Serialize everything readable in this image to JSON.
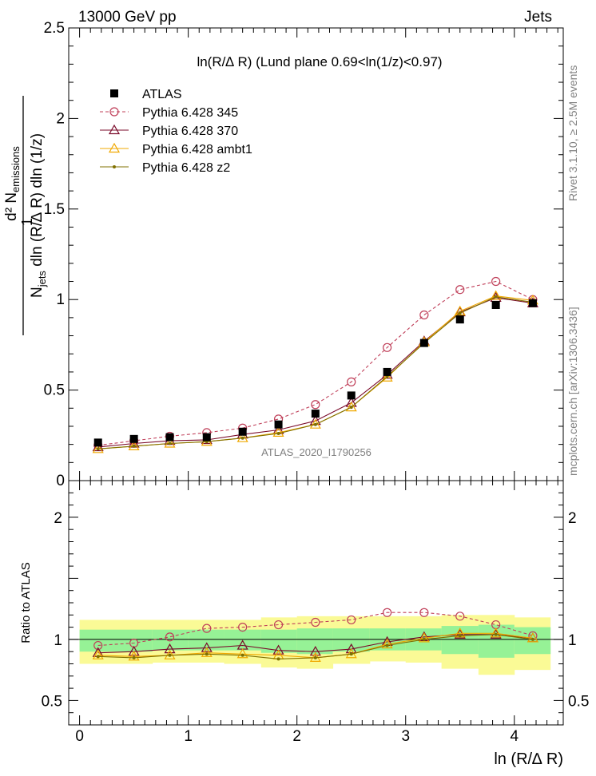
{
  "header": {
    "left": "13000 GeV pp",
    "right": "Jets"
  },
  "side_labels": {
    "rivet": "Rivet 3.1.10, ≥ 2.5M events",
    "mcplots": "mcplots.cern.ch [arXiv:1306.3436]"
  },
  "watermark": "ATLAS_2020_I1790256",
  "y_axis_label": {
    "numerator": "d² N",
    "numerator_sub": "emissions",
    "denominator_1": "N",
    "denominator_sub": "jets",
    "denominator_2": " dln (R/∆ R) dln (1/z)",
    "one": "1"
  },
  "ratio_ylabel": "Ratio to ATLAS",
  "colors": {
    "atlas": "#000000",
    "p345": "#c0405a",
    "p370": "#7a0a2a",
    "ambt1": "#f0a800",
    "z2": "#807000",
    "band_inner": "#96f296",
    "band_outer": "#fafa96"
  },
  "chart_data": [
    {
      "type": "line",
      "title": "ln(R/∆ R) (Lund plane 0.69<ln(1/z)<0.97)",
      "xlabel": "ln (R/∆ R)",
      "ylabel": "d²N_emissions / (N_jets dln(R/∆R) dln(1/z))",
      "xlim": [
        -0.1,
        4.45
      ],
      "ylim": [
        0,
        2.5
      ],
      "x_ticks": [
        "0",
        "1",
        "2",
        "3",
        "4"
      ],
      "y_ticks": [
        "0",
        "0.5",
        "1",
        "1.5",
        "2",
        "2.5"
      ],
      "legend_position": "top-left",
      "x": [
        0.17,
        0.5,
        0.83,
        1.17,
        1.5,
        1.83,
        2.17,
        2.5,
        2.83,
        3.17,
        3.5,
        3.83,
        4.17
      ],
      "series": [
        {
          "name": "ATLAS",
          "marker": "square",
          "color": "#000000",
          "values": [
            0.21,
            0.23,
            0.24,
            0.24,
            0.27,
            0.31,
            0.37,
            0.47,
            0.6,
            0.76,
            0.89,
            0.97,
            0.98
          ]
        },
        {
          "name": "Pythia 6.428 345",
          "marker": "open-circle",
          "color": "#c0405a",
          "dashed": true,
          "values": [
            0.195,
            0.22,
            0.245,
            0.265,
            0.29,
            0.34,
            0.42,
            0.545,
            0.735,
            0.915,
            1.055,
            1.1,
            1.0
          ]
        },
        {
          "name": "Pythia 6.428 370",
          "marker": "open-triangle",
          "color": "#7a0a2a",
          "values": [
            0.185,
            0.205,
            0.22,
            0.225,
            0.255,
            0.28,
            0.33,
            0.43,
            0.585,
            0.77,
            0.93,
            1.01,
            0.98
          ]
        },
        {
          "name": "Pythia 6.428 ambt1",
          "marker": "open-triangle",
          "color": "#f0a800",
          "values": [
            0.175,
            0.19,
            0.205,
            0.215,
            0.235,
            0.265,
            0.31,
            0.405,
            0.57,
            0.765,
            0.935,
            1.02,
            0.995
          ]
        },
        {
          "name": "Pythia 6.428 z2",
          "marker": "dot",
          "color": "#807000",
          "values": [
            0.175,
            0.19,
            0.205,
            0.215,
            0.235,
            0.26,
            0.31,
            0.405,
            0.575,
            0.76,
            0.925,
            1.015,
            0.985
          ]
        }
      ]
    },
    {
      "type": "line",
      "title": "",
      "xlabel": "ln (R/∆ R)",
      "ylabel": "Ratio to ATLAS",
      "xlim": [
        -0.1,
        4.45
      ],
      "ylim": [
        0.3,
        2.3
      ],
      "x_ticks": [
        "0",
        "1",
        "2",
        "3",
        "4"
      ],
      "y_ticks": [
        "0.5",
        "1",
        "2"
      ],
      "bin_edges": [
        0.0,
        0.33,
        0.67,
        1.0,
        1.33,
        1.67,
        2.0,
        2.33,
        2.67,
        3.0,
        3.33,
        3.67,
        4.0,
        4.33
      ],
      "band_inner": [
        [
          0.9,
          1.08
        ],
        [
          0.9,
          1.08
        ],
        [
          0.91,
          1.08
        ],
        [
          0.91,
          1.08
        ],
        [
          0.91,
          1.08
        ],
        [
          0.89,
          1.08
        ],
        [
          0.88,
          1.09
        ],
        [
          0.9,
          1.09
        ],
        [
          0.91,
          1.09
        ],
        [
          0.91,
          1.09
        ],
        [
          0.88,
          1.11
        ],
        [
          0.85,
          1.12
        ],
        [
          0.88,
          1.1
        ]
      ],
      "band_outer": [
        [
          0.8,
          1.16
        ],
        [
          0.8,
          1.16
        ],
        [
          0.81,
          1.16
        ],
        [
          0.81,
          1.16
        ],
        [
          0.8,
          1.16
        ],
        [
          0.77,
          1.18
        ],
        [
          0.76,
          1.19
        ],
        [
          0.8,
          1.19
        ],
        [
          0.82,
          1.19
        ],
        [
          0.81,
          1.19
        ],
        [
          0.76,
          1.2
        ],
        [
          0.71,
          1.2
        ],
        [
          0.75,
          1.18
        ]
      ],
      "x": [
        0.17,
        0.5,
        0.83,
        1.17,
        1.5,
        1.83,
        2.17,
        2.5,
        2.83,
        3.17,
        3.5,
        3.83,
        4.17
      ],
      "series": [
        {
          "name": "Pythia 6.428 345",
          "marker": "open-circle",
          "color": "#c0405a",
          "dashed": true,
          "values": [
            0.95,
            0.97,
            1.02,
            1.09,
            1.1,
            1.12,
            1.14,
            1.16,
            1.22,
            1.22,
            1.19,
            1.12,
            1.03
          ]
        },
        {
          "name": "Pythia 6.428 370",
          "marker": "open-triangle",
          "color": "#7a0a2a",
          "values": [
            0.89,
            0.9,
            0.92,
            0.93,
            0.95,
            0.91,
            0.9,
            0.92,
            0.98,
            1.02,
            1.04,
            1.04,
            1.01
          ]
        },
        {
          "name": "Pythia 6.428 ambt1",
          "marker": "open-triangle",
          "color": "#f0a800",
          "values": [
            0.87,
            0.86,
            0.87,
            0.89,
            0.88,
            0.87,
            0.85,
            0.88,
            0.96,
            1.01,
            1.05,
            1.05,
            1.01
          ]
        },
        {
          "name": "Pythia 6.428 z2",
          "marker": "dot",
          "color": "#807000",
          "values": [
            0.86,
            0.85,
            0.87,
            0.88,
            0.87,
            0.84,
            0.85,
            0.88,
            0.95,
            1.0,
            1.03,
            1.04,
            1.0
          ]
        }
      ]
    }
  ]
}
